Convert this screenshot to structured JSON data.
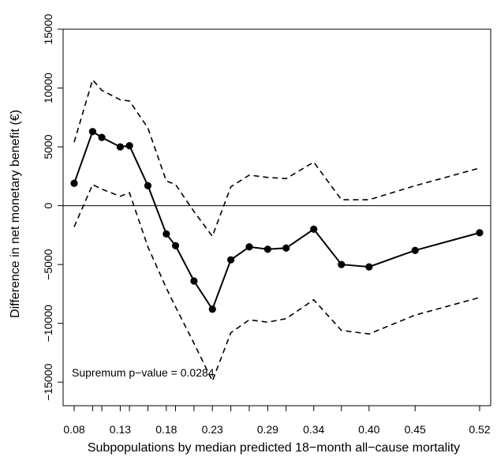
{
  "chart_data": {
    "type": "line",
    "title": "",
    "xlabel": "Subpopulations by median predicted 18−month all−cause mortality",
    "ylabel": "Difference in net monetary benefit (€)",
    "ylim": [
      -17000,
      15000
    ],
    "xlim": [
      0.068,
      0.532
    ],
    "x_ticks": [
      0.08,
      0.13,
      0.18,
      0.23,
      0.29,
      0.34,
      0.4,
      0.45,
      0.52
    ],
    "x_tick_labels": [
      "0.08",
      "0.13",
      "0.18",
      "0.23",
      "0.29",
      "0.34",
      "0.40",
      "0.45",
      "0.52"
    ],
    "x_minor_ticks": [
      0.1,
      0.11,
      0.14,
      0.16,
      0.19,
      0.21,
      0.25,
      0.27,
      0.31,
      0.37
    ],
    "y_ticks": [
      -15000,
      -10000,
      -5000,
      0,
      5000,
      10000,
      15000
    ],
    "y_tick_labels": [
      "−15000",
      "−10000",
      "−5000",
      "0",
      "5000",
      "10000",
      "15000"
    ],
    "reference_line": 0,
    "annotation": "Supremum p−value = 0.0284",
    "series": [
      {
        "style": "solid-with-points",
        "x": [
          0.08,
          0.1,
          0.11,
          0.13,
          0.14,
          0.16,
          0.18,
          0.19,
          0.21,
          0.23,
          0.25,
          0.27,
          0.29,
          0.31,
          0.34,
          0.37,
          0.4,
          0.45,
          0.52
        ],
        "y": [
          1900,
          6300,
          5800,
          5000,
          5100,
          1700,
          -2400,
          -3400,
          -6400,
          -8800,
          -4600,
          -3500,
          -3700,
          -3600,
          -2000,
          -5000,
          -5200,
          -3800,
          -2300
        ]
      },
      {
        "style": "dashed",
        "x": [
          0.08,
          0.1,
          0.11,
          0.13,
          0.14,
          0.16,
          0.18,
          0.19,
          0.21,
          0.23,
          0.25,
          0.27,
          0.29,
          0.31,
          0.34,
          0.37,
          0.4,
          0.45,
          0.52
        ],
        "y": [
          5400,
          10700,
          9800,
          9000,
          8900,
          6600,
          2100,
          1800,
          -500,
          -2600,
          1600,
          2600,
          2400,
          2300,
          3700,
          500,
          500,
          1700,
          3200
        ]
      },
      {
        "style": "dashed",
        "x": [
          0.08,
          0.1,
          0.11,
          0.13,
          0.14,
          0.16,
          0.18,
          0.19,
          0.21,
          0.23,
          0.25,
          0.27,
          0.29,
          0.31,
          0.34,
          0.37,
          0.4,
          0.45,
          0.52
        ],
        "y": [
          -1800,
          1800,
          1400,
          800,
          1100,
          -3500,
          -7000,
          -8600,
          -11700,
          -14900,
          -10800,
          -9700,
          -9900,
          -9600,
          -8000,
          -10600,
          -10900,
          -9300,
          -7800
        ]
      }
    ]
  }
}
